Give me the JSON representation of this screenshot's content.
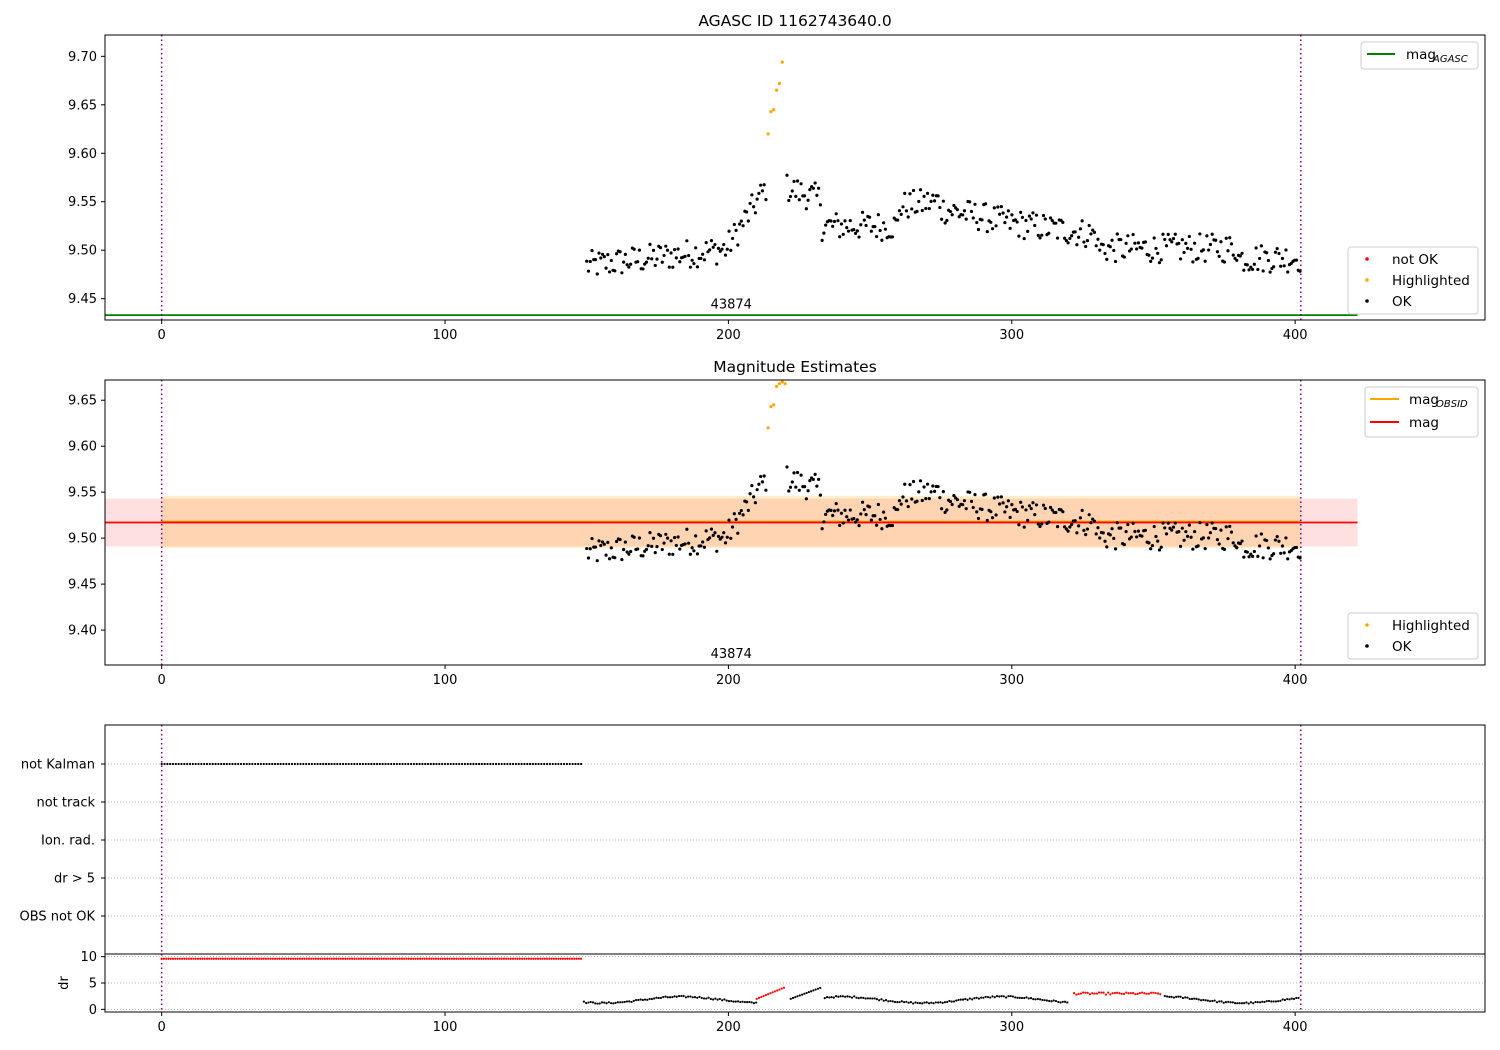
{
  "chart_data": [
    {
      "type": "scatter",
      "title": "AGASC ID 1162743640.0",
      "xlim": [
        -20,
        467
      ],
      "ylim": [
        9.428,
        9.722
      ],
      "xticks": [
        0,
        100,
        200,
        300,
        400
      ],
      "yticks": [
        9.45,
        9.5,
        9.55,
        9.6,
        9.65,
        9.7
      ],
      "obs_boundaries": [
        0,
        402
      ],
      "obsid_label": {
        "text": "43874",
        "x": 201,
        "y": 9.444
      },
      "lines": [
        {
          "name": "magAGASC",
          "y": 9.433,
          "x": [
            -20,
            422
          ],
          "color": "#008000"
        }
      ],
      "series": [
        {
          "name": "not OK",
          "color": "#ff0000",
          "points": []
        },
        {
          "name": "Highlighted",
          "color": "#ffa500",
          "points": [
            [
              214,
              9.62
            ],
            [
              215,
              9.643
            ],
            [
              216,
              9.645
            ],
            [
              217,
              9.665
            ],
            [
              218,
              9.672
            ],
            [
              219,
              9.694
            ]
          ]
        },
        {
          "name": "OK",
          "color": "#000000",
          "generator": "ok_walk"
        }
      ],
      "legend": [
        "not OK",
        "Highlighted",
        "OK"
      ],
      "legend_top": [
        "magAGASC"
      ]
    },
    {
      "type": "scatter",
      "title": "Magnitude Estimates",
      "xlim": [
        -20,
        467
      ],
      "ylim": [
        9.362,
        9.672
      ],
      "xticks": [
        0,
        100,
        200,
        300,
        400
      ],
      "yticks": [
        9.4,
        9.45,
        9.5,
        9.55,
        9.6,
        9.65
      ],
      "obs_boundaries": [
        0,
        402
      ],
      "obsid_label": {
        "text": "43874",
        "x": 201,
        "y": 9.374
      },
      "bands": [
        {
          "name": "mag",
          "center": 9.517,
          "low": 9.491,
          "high": 9.543,
          "x": [
            -20,
            422
          ],
          "color": "#ff0000"
        },
        {
          "name": "magOBSID",
          "center": 9.518,
          "low": 9.489,
          "high": 9.546,
          "x": [
            0,
            402
          ],
          "color": "#ffa500"
        }
      ],
      "series": [
        {
          "name": "Highlighted",
          "color": "#ffa500",
          "points": [
            [
              214,
              9.62
            ],
            [
              215,
              9.643
            ],
            [
              216,
              9.645
            ],
            [
              217,
              9.665
            ],
            [
              218,
              9.668
            ],
            [
              219,
              9.67
            ],
            [
              220,
              9.668
            ]
          ]
        },
        {
          "name": "OK",
          "color": "#000000",
          "generator": "ok_walk"
        }
      ],
      "legend": [
        "Highlighted",
        "OK"
      ],
      "legend_top": [
        "magOBSID",
        "mag"
      ]
    },
    {
      "type": "scatter",
      "title": "",
      "xlim": [
        -20,
        467
      ],
      "categories": [
        "not Kalman",
        "not track",
        "Ion. rad.",
        "dr > 5",
        "OBS not OK"
      ],
      "obs_boundaries": [
        0,
        402
      ],
      "flag_series": [
        {
          "category": "not Kalman",
          "x_from": 0,
          "x_to": 148,
          "color": "#000000"
        }
      ]
    },
    {
      "type": "scatter",
      "title": "",
      "xlim": [
        -20,
        467
      ],
      "ylim": [
        -0.5,
        10.5
      ],
      "xticks": [
        0,
        100,
        200,
        300,
        400
      ],
      "yticks": [
        0,
        5,
        10
      ],
      "ylabel": "dr",
      "obs_boundaries": [
        0,
        402
      ],
      "segments": [
        {
          "x_from": 0,
          "x_to": 148,
          "y": 9.6,
          "color": "#ff0000"
        },
        {
          "x_from": 149,
          "x_to": 210,
          "color": "#000000",
          "generator": "dr_low"
        },
        {
          "x_from": 210,
          "x_to": 220,
          "color": "#ff0000",
          "generator": "dr_ramp"
        },
        {
          "x_from": 222,
          "x_to": 233,
          "color": "#000000",
          "generator": "dr_ramp"
        },
        {
          "x_from": 234,
          "x_to": 320,
          "color": "#000000",
          "generator": "dr_low"
        },
        {
          "x_from": 322,
          "x_to": 353,
          "color": "#ff0000",
          "generator": "dr_mid"
        },
        {
          "x_from": 354,
          "x_to": 402,
          "color": "#000000",
          "generator": "dr_low"
        }
      ]
    }
  ],
  "legend_labels": {
    "not_ok": "not OK",
    "highlighted": "Highlighted",
    "ok": "OK",
    "mag": "mag",
    "mag_sub_agasc": "AGASC",
    "mag_sub_obsid": "OBSID"
  },
  "colors": {
    "ok": "#000000",
    "highlighted": "#ffa500",
    "not_ok": "#ff0000",
    "agasc_line": "#008000",
    "mag_line": "#ff0000",
    "obsid_line": "#ffa500",
    "boundary": "#800080"
  }
}
